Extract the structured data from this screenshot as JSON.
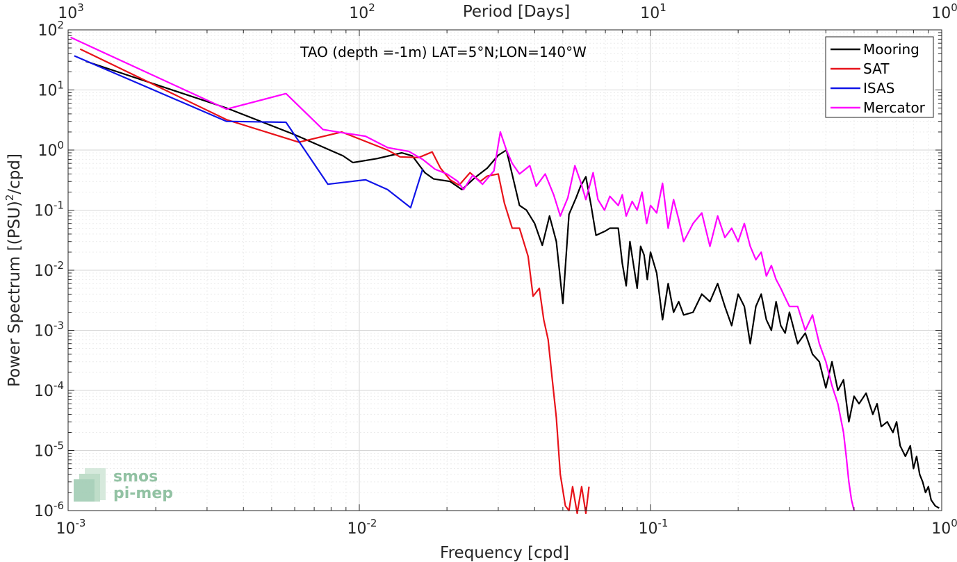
{
  "chart_data": {
    "type": "line",
    "title": "TAO (depth =-1m) LAT=5°N;LON=140°W",
    "xlabel": "Frequency [cpd]",
    "ylabel": "Power Spectrum [(PSU)²/cpd]",
    "top_xlabel": "Period [Days]",
    "xscale": "log",
    "yscale": "log",
    "xlim": [
      0.001,
      1
    ],
    "ylim": [
      1e-06,
      100
    ],
    "grid": true,
    "legend_position": "top-right",
    "x_ticks": [
      {
        "value": 0.001,
        "base": "10",
        "exp": "-3"
      },
      {
        "value": 0.01,
        "base": "10",
        "exp": "-2"
      },
      {
        "value": 0.1,
        "base": "10",
        "exp": "-1"
      },
      {
        "value": 1,
        "base": "10",
        "exp": "0"
      }
    ],
    "top_ticks": [
      {
        "value": 0.001,
        "base": "10",
        "exp": "3"
      },
      {
        "value": 0.01,
        "base": "10",
        "exp": "2"
      },
      {
        "value": 0.1,
        "base": "10",
        "exp": "1"
      },
      {
        "value": 1,
        "base": "10",
        "exp": "0"
      }
    ],
    "y_ticks": [
      {
        "value": 100,
        "base": "10",
        "exp": "2"
      },
      {
        "value": 10,
        "base": "10",
        "exp": "1"
      },
      {
        "value": 1,
        "base": "10",
        "exp": "0"
      },
      {
        "value": 0.1,
        "base": "10",
        "exp": "-1"
      },
      {
        "value": 0.01,
        "base": "10",
        "exp": "-2"
      },
      {
        "value": 0.001,
        "base": "10",
        "exp": "-3"
      },
      {
        "value": 0.0001,
        "base": "10",
        "exp": "-4"
      },
      {
        "value": 1e-05,
        "base": "10",
        "exp": "-5"
      },
      {
        "value": 1e-06,
        "base": "10",
        "exp": "-6"
      }
    ],
    "series": [
      {
        "name": "Mooring",
        "color": "#000000",
        "x": [
          0.00115,
          0.0035,
          0.006,
          0.0088,
          0.0095,
          0.0115,
          0.014,
          0.0152,
          0.0168,
          0.018,
          0.0205,
          0.0225,
          0.025,
          0.0275,
          0.03,
          0.032,
          0.0355,
          0.0375,
          0.04,
          0.0425,
          0.045,
          0.0475,
          0.05,
          0.0525,
          0.0555,
          0.0575,
          0.06,
          0.0625,
          0.065,
          0.07,
          0.0725,
          0.0775,
          0.08,
          0.0825,
          0.085,
          0.0875,
          0.09,
          0.0925,
          0.095,
          0.0975,
          0.1,
          0.105,
          0.11,
          0.115,
          0.12,
          0.125,
          0.13,
          0.14,
          0.15,
          0.16,
          0.17,
          0.18,
          0.19,
          0.2,
          0.21,
          0.22,
          0.23,
          0.24,
          0.25,
          0.26,
          0.27,
          0.28,
          0.29,
          0.3,
          0.32,
          0.34,
          0.36,
          0.38,
          0.4,
          0.42,
          0.44,
          0.46,
          0.48,
          0.5,
          0.52,
          0.55,
          0.58,
          0.6,
          0.62,
          0.65,
          0.68,
          0.7,
          0.72,
          0.75,
          0.78,
          0.8,
          0.82,
          0.84,
          0.86,
          0.88,
          0.9,
          0.92,
          0.95,
          0.98
        ],
        "y": [
          30,
          5,
          1.8,
          0.8,
          0.62,
          0.72,
          0.9,
          0.8,
          0.42,
          0.33,
          0.3,
          0.22,
          0.35,
          0.5,
          0.82,
          1.0,
          0.12,
          0.1,
          0.06,
          0.026,
          0.08,
          0.03,
          0.0028,
          0.085,
          0.16,
          0.25,
          0.36,
          0.12,
          0.038,
          0.045,
          0.05,
          0.05,
          0.013,
          0.0055,
          0.03,
          0.012,
          0.005,
          0.025,
          0.018,
          0.007,
          0.02,
          0.009,
          0.0015,
          0.006,
          0.002,
          0.003,
          0.0018,
          0.002,
          0.004,
          0.003,
          0.006,
          0.0025,
          0.0012,
          0.004,
          0.0025,
          0.0006,
          0.0025,
          0.004,
          0.0015,
          0.001,
          0.003,
          0.0012,
          0.0009,
          0.002,
          0.0006,
          0.0009,
          0.0004,
          0.0003,
          0.00011,
          0.0003,
          0.0001,
          0.00015,
          3e-05,
          8e-05,
          6e-05,
          9e-05,
          4e-05,
          6e-05,
          2.5e-05,
          3e-05,
          2e-05,
          3e-05,
          1.2e-05,
          8e-06,
          1.2e-05,
          5e-06,
          8e-06,
          4e-06,
          3e-06,
          2e-06,
          2.5e-06,
          1.5e-06,
          1.2e-06,
          1.1e-06
        ]
      },
      {
        "name": "SAT",
        "color": "#e8121a",
        "x": [
          0.0011,
          0.0035,
          0.0062,
          0.0087,
          0.0125,
          0.0138,
          0.016,
          0.0178,
          0.019,
          0.0205,
          0.022,
          0.024,
          0.026,
          0.0275,
          0.03,
          0.0315,
          0.0335,
          0.0355,
          0.038,
          0.0395,
          0.0415,
          0.043,
          0.0445,
          0.046,
          0.0475,
          0.049,
          0.051,
          0.0525,
          0.054,
          0.056,
          0.058,
          0.06,
          0.0615
        ],
        "y": [
          48,
          3.2,
          1.35,
          2.0,
          1.0,
          0.77,
          0.75,
          0.93,
          0.5,
          0.32,
          0.26,
          0.42,
          0.3,
          0.37,
          0.4,
          0.13,
          0.05,
          0.05,
          0.017,
          0.0037,
          0.005,
          0.0015,
          0.0007,
          0.00015,
          3.5e-05,
          4e-06,
          1.2e-06,
          1e-06,
          2.5e-06,
          9e-07,
          2.5e-06,
          9e-07,
          2.5e-06
        ]
      },
      {
        "name": "ISAS",
        "color": "#1014e8",
        "x": [
          0.00105,
          0.0035,
          0.0056,
          0.0078,
          0.0105,
          0.0125,
          0.015,
          0.0165
        ],
        "y": [
          37,
          3.0,
          2.9,
          0.27,
          0.32,
          0.22,
          0.11,
          0.48
        ]
      },
      {
        "name": "Mercator",
        "color": "#ff00ff",
        "x": [
          0.00102,
          0.0035,
          0.0056,
          0.0075,
          0.0087,
          0.0105,
          0.0125,
          0.0148,
          0.0165,
          0.0182,
          0.02,
          0.0218,
          0.0228,
          0.0245,
          0.0265,
          0.029,
          0.0305,
          0.032,
          0.0335,
          0.0355,
          0.0385,
          0.0405,
          0.0435,
          0.0465,
          0.049,
          0.052,
          0.055,
          0.0575,
          0.06,
          0.0635,
          0.066,
          0.0695,
          0.0725,
          0.0775,
          0.08,
          0.0825,
          0.0865,
          0.09,
          0.0935,
          0.097,
          0.1,
          0.105,
          0.11,
          0.115,
          0.12,
          0.125,
          0.13,
          0.14,
          0.15,
          0.16,
          0.17,
          0.18,
          0.19,
          0.2,
          0.21,
          0.22,
          0.23,
          0.24,
          0.25,
          0.26,
          0.27,
          0.28,
          0.29,
          0.3,
          0.32,
          0.34,
          0.36,
          0.38,
          0.4,
          0.42,
          0.44,
          0.46,
          0.47,
          0.48,
          0.49,
          0.5
        ],
        "y": [
          75,
          4.8,
          8.7,
          2.2,
          1.95,
          1.7,
          1.1,
          0.95,
          0.7,
          0.48,
          0.4,
          0.3,
          0.22,
          0.38,
          0.27,
          0.45,
          2.0,
          1.0,
          0.6,
          0.4,
          0.55,
          0.25,
          0.4,
          0.18,
          0.08,
          0.16,
          0.55,
          0.3,
          0.15,
          0.42,
          0.15,
          0.1,
          0.17,
          0.12,
          0.18,
          0.08,
          0.14,
          0.1,
          0.2,
          0.06,
          0.12,
          0.09,
          0.28,
          0.05,
          0.15,
          0.07,
          0.03,
          0.06,
          0.09,
          0.025,
          0.08,
          0.035,
          0.05,
          0.03,
          0.06,
          0.025,
          0.015,
          0.02,
          0.008,
          0.012,
          0.007,
          0.005,
          0.0035,
          0.0025,
          0.0025,
          0.001,
          0.0018,
          0.0006,
          0.0003,
          0.00012,
          6e-05,
          2e-05,
          8e-06,
          3e-06,
          1.5e-06,
          1e-06
        ]
      }
    ]
  },
  "logo": {
    "line1": "smos",
    "line2": "pi-mep"
  }
}
